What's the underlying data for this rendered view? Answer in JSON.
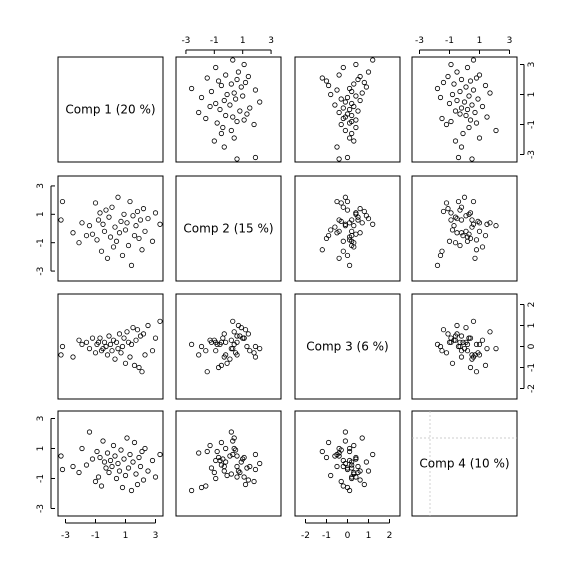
{
  "chart_data": {
    "type": "scatter",
    "subtype": "scatterplot-matrix",
    "variables": [
      {
        "name": "Comp 1",
        "label": "Comp 1 (20 %)",
        "range": [
          -3.5,
          3.5
        ],
        "ticks": [
          -3,
          -1,
          1,
          3
        ]
      },
      {
        "name": "Comp 2",
        "label": "Comp 2 (15 %)",
        "range": [
          -3.7,
          3.7
        ],
        "ticks": [
          -3,
          -1,
          1,
          3
        ]
      },
      {
        "name": "Comp 3",
        "label": "Comp 3 (6 %)",
        "range": [
          -2.5,
          2.5
        ],
        "ticks": [
          -2,
          -1,
          0,
          1,
          2
        ]
      },
      {
        "name": "Comp 4",
        "label": "Comp 4 (10 %)",
        "range": [
          -3.5,
          3.5
        ],
        "ticks": [
          -3,
          -1,
          1,
          3
        ]
      }
    ],
    "axis_placement": {
      "top": [
        1,
        3
      ],
      "right": [
        0,
        2
      ],
      "bottom": [
        0,
        2
      ],
      "left": [
        1,
        3
      ]
    },
    "diagonal_guides": {
      "variable": "Comp 4",
      "x": -2.3,
      "y": 1.7
    },
    "observations": [
      [
        -3.3,
        0.6,
        -0.4,
        0.5
      ],
      [
        -3.2,
        1.9,
        0.0,
        -0.4
      ],
      [
        -2.5,
        -0.3,
        -0.5,
        -0.2
      ],
      [
        -2.1,
        -1.0,
        0.3,
        -0.6
      ],
      [
        -1.9,
        0.4,
        0.1,
        1.0
      ],
      [
        -1.6,
        -0.5,
        0.2,
        -0.1
      ],
      [
        -1.4,
        0.2,
        -0.1,
        2.1
      ],
      [
        -1.2,
        -0.4,
        0.4,
        0.3
      ],
      [
        -1.0,
        1.8,
        -0.3,
        -1.2
      ],
      [
        -0.9,
        -0.8,
        0.1,
        0.8
      ],
      [
        -0.8,
        0.6,
        0.2,
        -0.9
      ],
      [
        -0.7,
        1.1,
        0.4,
        0.4
      ],
      [
        -0.6,
        -1.6,
        -0.2,
        -1.5
      ],
      [
        -0.5,
        0.3,
        -0.1,
        1.5
      ],
      [
        -0.4,
        -0.2,
        0.2,
        0.1
      ],
      [
        -0.3,
        1.3,
        0.0,
        -0.3
      ],
      [
        -0.2,
        -2.1,
        -0.4,
        0.7
      ],
      [
        -0.1,
        0.8,
        0.5,
        -0.6
      ],
      [
        0.0,
        -0.6,
        0.1,
        0.2
      ],
      [
        0.1,
        1.5,
        -0.2,
        -0.2
      ],
      [
        0.2,
        -1.3,
        0.3,
        1.2
      ],
      [
        0.3,
        0.1,
        -0.6,
        0.5
      ],
      [
        0.4,
        -0.9,
        0.2,
        -1.0
      ],
      [
        0.5,
        2.2,
        -0.1,
        0.0
      ],
      [
        0.6,
        -0.3,
        0.6,
        -0.5
      ],
      [
        0.7,
        0.5,
        -0.3,
        0.9
      ],
      [
        0.8,
        -1.9,
        0.0,
        -1.6
      ],
      [
        0.9,
        1.0,
        0.4,
        0.3
      ],
      [
        1.0,
        -0.1,
        -0.8,
        -0.8
      ],
      [
        1.1,
        0.4,
        0.7,
        1.7
      ],
      [
        1.2,
        -1.2,
        0.2,
        -0.3
      ],
      [
        1.3,
        1.9,
        -0.5,
        0.6
      ],
      [
        1.4,
        -2.6,
        0.1,
        -1.8
      ],
      [
        1.5,
        0.9,
        0.9,
        0.1
      ],
      [
        1.6,
        -0.5,
        -0.9,
        1.4
      ],
      [
        1.7,
        0.2,
        0.3,
        -0.7
      ],
      [
        1.8,
        1.2,
        0.8,
        -1.4
      ],
      [
        1.9,
        -0.7,
        -1.0,
        0.4
      ],
      [
        2.0,
        0.6,
        0.5,
        -0.2
      ],
      [
        2.1,
        -1.5,
        -1.2,
        0.8
      ],
      [
        2.2,
        1.4,
        0.6,
        -1.1
      ],
      [
        2.3,
        -0.2,
        -0.4,
        1.0
      ],
      [
        2.5,
        0.7,
        1.0,
        -0.5
      ],
      [
        2.8,
        -0.9,
        -0.2,
        0.2
      ],
      [
        3.0,
        1.1,
        0.4,
        -0.9
      ],
      [
        3.3,
        0.3,
        1.2,
        0.6
      ]
    ],
    "grid": false,
    "legend": "none"
  }
}
